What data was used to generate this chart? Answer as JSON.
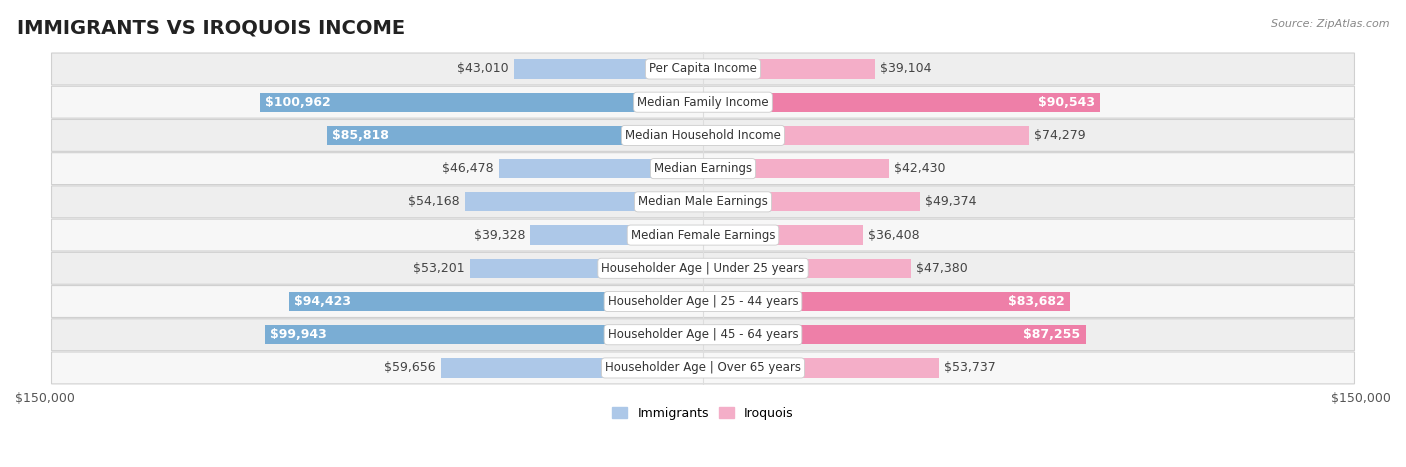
{
  "title": "IMMIGRANTS VS IROQUOIS INCOME",
  "source": "Source: ZipAtlas.com",
  "categories": [
    "Per Capita Income",
    "Median Family Income",
    "Median Household Income",
    "Median Earnings",
    "Median Male Earnings",
    "Median Female Earnings",
    "Householder Age | Under 25 years",
    "Householder Age | 25 - 44 years",
    "Householder Age | 45 - 64 years",
    "Householder Age | Over 65 years"
  ],
  "immigrants": [
    43010,
    100962,
    85818,
    46478,
    54168,
    39328,
    53201,
    94423,
    99943,
    59656
  ],
  "iroquois": [
    39104,
    90543,
    74279,
    42430,
    49374,
    36408,
    47380,
    83682,
    87255,
    53737
  ],
  "max_val": 150000,
  "immigrants_color_light": "#adc8e8",
  "immigrants_color_dark": "#7aadd4",
  "iroquois_color_light": "#f4aec8",
  "iroquois_color_dark": "#ee7fa8",
  "imm_white_threshold": 75000,
  "iro_white_threshold": 75000,
  "bar_height": 0.58,
  "row_bg_light": "#f7f7f7",
  "row_bg_dark": "#eeeeee",
  "title_fontsize": 14,
  "label_fontsize": 9,
  "axis_fontsize": 9,
  "legend_fontsize": 9,
  "category_fontsize": 8.5
}
